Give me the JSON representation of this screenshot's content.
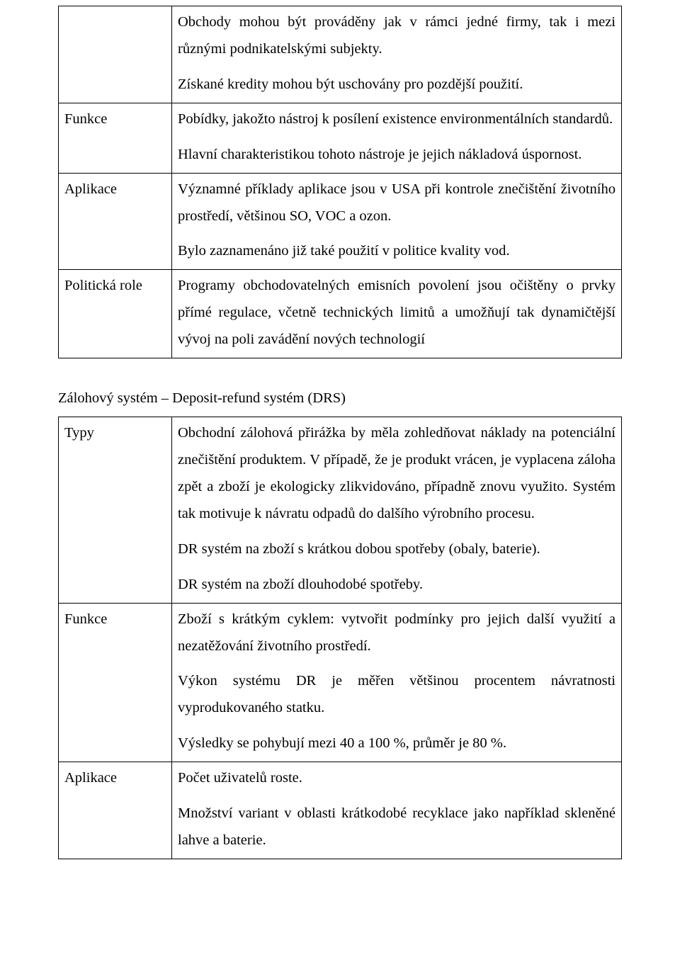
{
  "table1": {
    "rows": [
      {
        "label": "",
        "paragraphs": [
          "Obchody mohou být prováděny jak v rámci jedné firmy, tak i mezi různými podnikatelskými subjekty.",
          "Získané kredity mohou být uschovány pro pozdější použití."
        ]
      },
      {
        "label": "Funkce",
        "paragraphs": [
          "Pobídky, jakožto nástroj k posílení existence environmentálních standardů.",
          "Hlavní charakteristikou tohoto nástroje je jejich nákladová úspornost."
        ]
      },
      {
        "label": "Aplikace",
        "paragraphs": [
          "Významné příklady aplikace jsou v USA při kontrole znečištění životního prostředí, většinou SO, VOC a ozon.",
          "Bylo zaznamenáno již také použití v politice kvality vod."
        ]
      },
      {
        "label": "Politická role",
        "paragraphs": [
          "Programy obchodovatelných emisních povolení jsou očištěny o prvky přímé regulace, včetně technických limitů a umožňují tak dynamičtější vývoj na poli zavádění nových technologií"
        ]
      }
    ]
  },
  "between_heading": "Zálohový systém – Deposit-refund systém (DRS)",
  "table2": {
    "rows": [
      {
        "label": "Typy",
        "paragraphs": [
          "Obchodní zálohová přirážka by měla zohledňovat náklady na potenciální znečištění produktem. V případě, že je produkt vrácen, je vyplacena záloha zpět a zboží je ekologicky zlikvidováno, případně znovu využito. Systém tak motivuje k návratu odpadů do dalšího výrobního procesu.",
          "DR systém na zboží s krátkou dobou spotřeby (obaly, baterie).",
          "DR systém na zboží dlouhodobé spotřeby."
        ]
      },
      {
        "label": "Funkce",
        "paragraphs": [
          "Zboží s krátkým cyklem: vytvořit podmínky pro jejich další využití a nezatěžování životního prostředí.",
          "Výkon systému DR je měřen většinou procentem návratnosti vyprodukovaného statku.",
          "Výsledky se pohybují mezi 40 a 100 %, průměr je 80 %."
        ]
      },
      {
        "label": "Aplikace",
        "paragraphs": [
          "Počet uživatelů roste.",
          "Množství variant v oblasti krátkodobé recyklace jako například skleněné lahve a baterie."
        ]
      }
    ]
  }
}
